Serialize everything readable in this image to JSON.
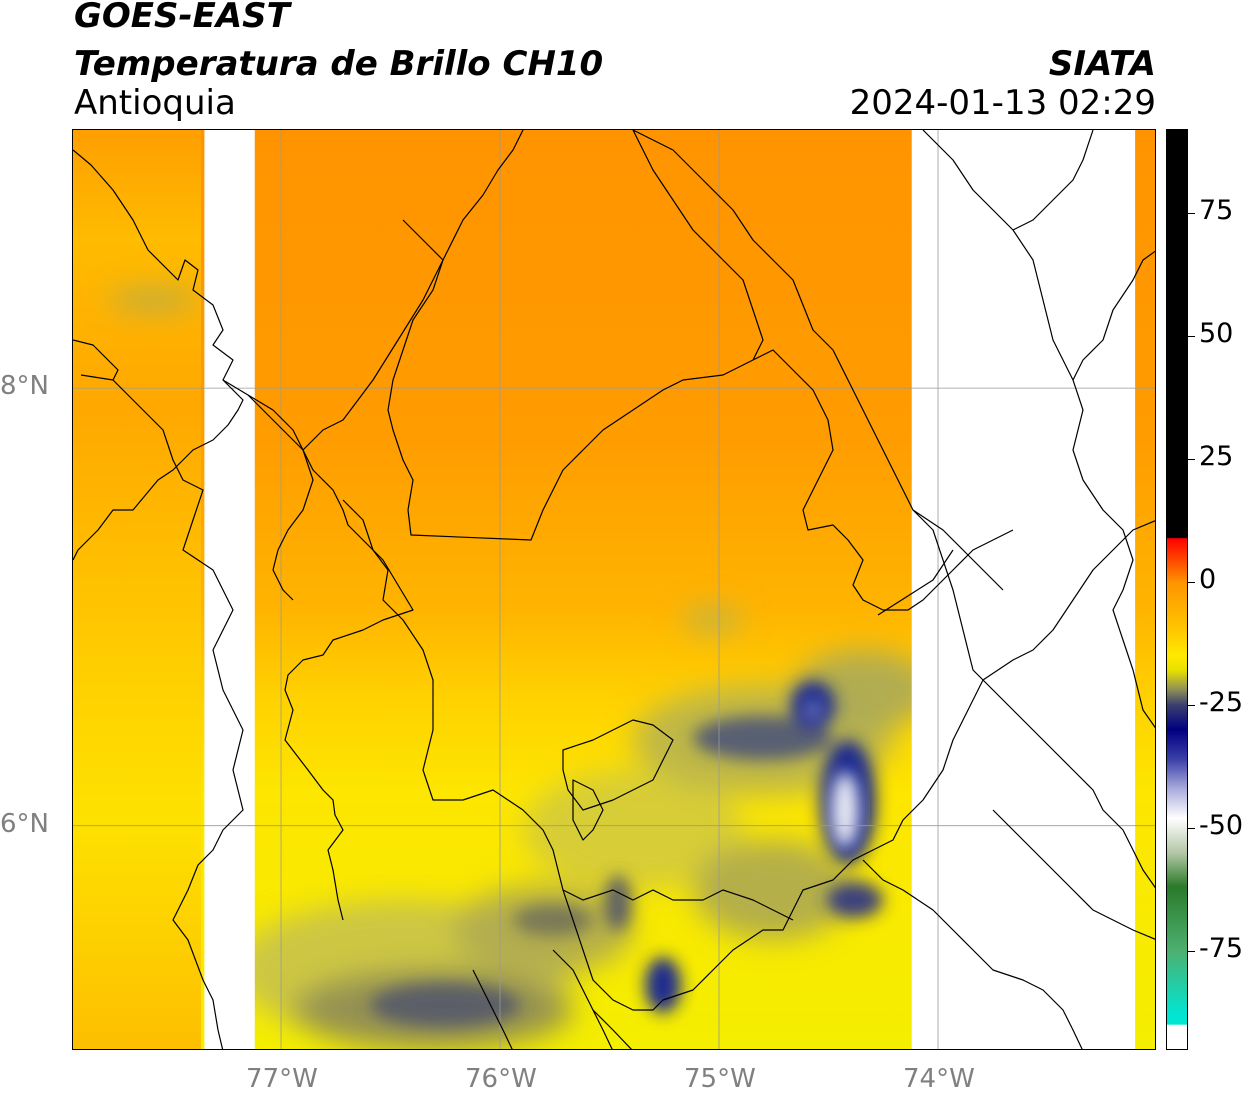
{
  "header": {
    "satellite": "GOES-EAST",
    "product": "Temperatura de Brillo CH10",
    "region": "Antioquia",
    "agency": "SIATA",
    "datetime": "2024-01-13 02:29"
  },
  "map": {
    "lon_range": [
      -77.95,
      -73.0
    ],
    "lat_range": [
      4.97,
      9.18
    ],
    "gridlines": true,
    "lon_ticks": [
      {
        "value": -77,
        "label": "77°W"
      },
      {
        "value": -76,
        "label": "76°W"
      },
      {
        "value": -75,
        "label": "75°W"
      },
      {
        "value": -74,
        "label": "74°W"
      }
    ],
    "lat_ticks": [
      {
        "value": 8,
        "label": "8°N"
      },
      {
        "value": 6,
        "label": "6°N"
      }
    ],
    "no_data_strips": [
      {
        "lon_from": -77.35,
        "lon_to": -77.12
      },
      {
        "lon_from": -74.12,
        "lon_to": -73.1
      }
    ],
    "colors": {
      "warm": "#ff9400",
      "mid": "#ffd200",
      "cool": "#f4ee00",
      "cold_gray": "#9a9a55",
      "very_cold_blue": "#1a1f8a",
      "no_data": "#ffffff"
    }
  },
  "colorbar": {
    "range": [
      -95,
      92
    ],
    "ticks": [
      {
        "value": 75,
        "label": "75"
      },
      {
        "value": 50,
        "label": "50"
      },
      {
        "value": 25,
        "label": "25"
      },
      {
        "value": 0,
        "label": "0"
      },
      {
        "value": -25,
        "label": "-25"
      },
      {
        "value": -50,
        "label": "-50"
      },
      {
        "value": -75,
        "label": "-75"
      }
    ],
    "stops": [
      {
        "value": 92,
        "color": "#000000"
      },
      {
        "value": 9,
        "color": "#000000"
      },
      {
        "value": 8.9,
        "color": "#ff0000"
      },
      {
        "value": 3,
        "color": "#ff6000"
      },
      {
        "value": 0,
        "color": "#ff9400"
      },
      {
        "value": -10,
        "color": "#ffc800"
      },
      {
        "value": -15,
        "color": "#ffea00"
      },
      {
        "value": -18,
        "color": "#e6e000"
      },
      {
        "value": -22,
        "color": "#8c8c5a"
      },
      {
        "value": -25,
        "color": "#3a3f6e"
      },
      {
        "value": -30,
        "color": "#000080"
      },
      {
        "value": -36,
        "color": "#3a3fa8"
      },
      {
        "value": -42,
        "color": "#a8aadc"
      },
      {
        "value": -48,
        "color": "#ffffff"
      },
      {
        "value": -55,
        "color": "#b4c8a8"
      },
      {
        "value": -62,
        "color": "#2a7a2a"
      },
      {
        "value": -75,
        "color": "#4db070"
      },
      {
        "value": -88,
        "color": "#00e6d2"
      },
      {
        "value": -90,
        "color": "#00e6d2"
      },
      {
        "value": -90.1,
        "color": "#ffffff"
      },
      {
        "value": -95,
        "color": "#ffffff"
      }
    ]
  }
}
